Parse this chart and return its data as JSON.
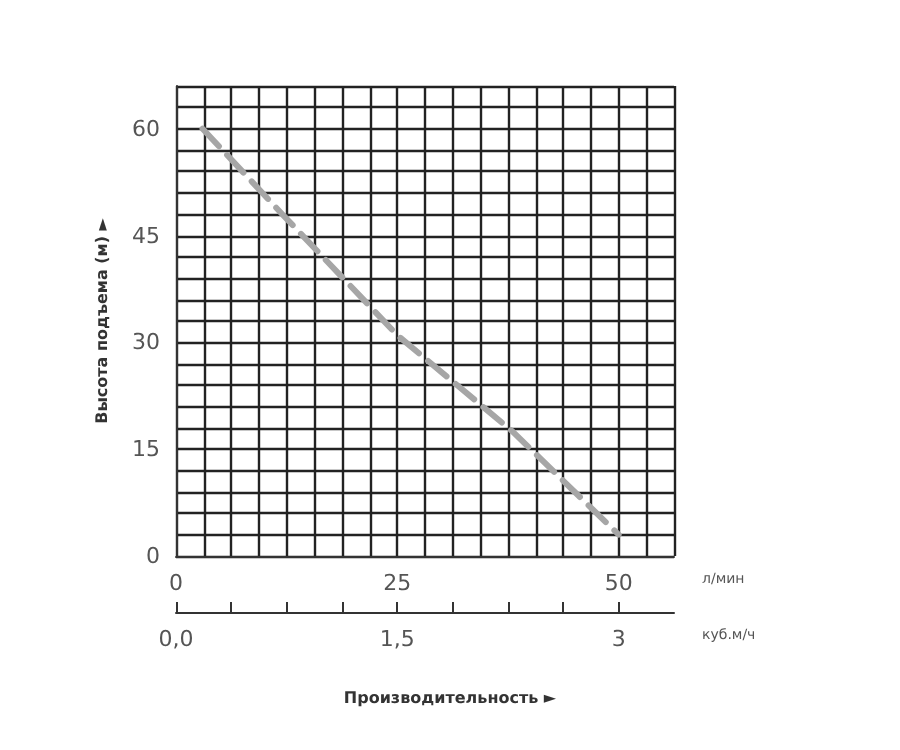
{
  "chart_data": {
    "type": "line",
    "ylabel": "Высота подъема (м) ►",
    "xlabel": "л/мин",
    "x2label": "куб.м/ч",
    "annotations": [
      "Производительность ►"
    ],
    "x": [
      3,
      12,
      25,
      38,
      50
    ],
    "series": [
      {
        "color": "#a6a6a6",
        "values": [
          60,
          48,
          31,
          17.5,
          3
        ]
      }
    ],
    "xlim": [
      0,
      56.25
    ],
    "xticks": [
      0,
      25,
      50
    ],
    "x2lim": [
      0,
      3.375
    ],
    "x2ticks": [
      {
        "value": 0,
        "label": "0,0"
      },
      {
        "value": 0.375,
        "label": null
      },
      {
        "value": 0.75,
        "label": null
      },
      {
        "value": 1.125,
        "label": null
      },
      {
        "value": 1.5,
        "label": "1,5"
      },
      {
        "value": 1.875,
        "label": null
      },
      {
        "value": 2.25,
        "label": null
      },
      {
        "value": 2.625,
        "label": null
      },
      {
        "value": 3,
        "label": "3"
      }
    ],
    "ylim": [
      0,
      66
    ],
    "yticks": [
      0,
      15,
      30,
      45,
      60
    ],
    "grid": true,
    "marker": "none",
    "line_style": "dashed"
  }
}
